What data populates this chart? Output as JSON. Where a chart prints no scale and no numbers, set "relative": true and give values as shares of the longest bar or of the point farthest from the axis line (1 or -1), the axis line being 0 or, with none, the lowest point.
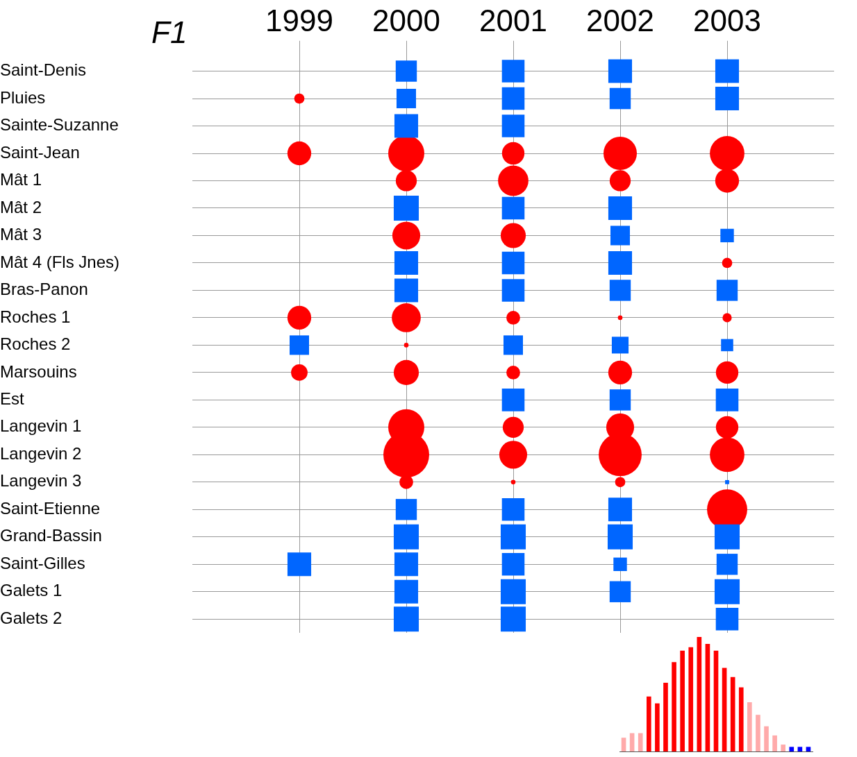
{
  "chart_data": [
    {
      "type": "bubble",
      "orientation": "horizontal",
      "title": "F1",
      "categories": [
        "Saint-Denis",
        "Pluies",
        "Sainte-Suzanne",
        "Saint-Jean",
        "Mât 1",
        "Mât 2",
        "Mât 3",
        "Mât 4 (Fls Jnes)",
        "Bras-Panon",
        "Roches 1",
        "Roches 2",
        "Marsouins",
        "Est",
        "Langevin 1",
        "Langevin 2",
        "Langevin 3",
        "Saint-Etienne",
        "Grand-Bassin",
        "Saint-Gilles",
        "Galets 1",
        "Galets 2"
      ],
      "xlim": [
        1998,
        2004
      ],
      "xticks": [
        1999,
        2000,
        2001,
        2002,
        2003
      ],
      "grid": true,
      "series": [
        {
          "color": "#0066ff",
          "marker": "square",
          "values": [
            null,
            null,
            null,
            null,
            null,
            null,
            null,
            null,
            null,
            null,
            1999,
            null,
            null,
            null,
            null,
            null,
            null,
            null,
            1999,
            null,
            null
          ],
          "sizes": [
            null,
            null,
            null,
            null,
            null,
            null,
            null,
            null,
            null,
            null,
            0.23,
            null,
            null,
            null,
            null,
            null,
            null,
            null,
            0.34,
            null,
            null
          ]
        },
        {
          "color": "#0066ff",
          "marker": "square",
          "values": [
            2000,
            2000,
            2000,
            null,
            null,
            2000,
            null,
            2000,
            2000,
            null,
            null,
            null,
            null,
            null,
            null,
            null,
            2000,
            2000,
            2000,
            2000,
            2000
          ],
          "sizes": [
            0.27,
            0.23,
            0.34,
            null,
            null,
            0.38,
            null,
            0.34,
            0.34,
            null,
            null,
            null,
            null,
            null,
            null,
            null,
            0.27,
            0.38,
            0.34,
            0.34,
            0.38
          ]
        },
        {
          "color": "#0066ff",
          "marker": "square",
          "values": [
            2001,
            2001,
            2001,
            null,
            null,
            2001,
            null,
            2001,
            2001,
            null,
            2001,
            null,
            2001,
            null,
            null,
            null,
            2001,
            2001,
            2001,
            2001,
            2001
          ],
          "sizes": [
            0.31,
            0.31,
            0.31,
            null,
            null,
            0.31,
            null,
            0.31,
            0.31,
            null,
            0.23,
            null,
            0.31,
            null,
            null,
            null,
            0.31,
            0.38,
            0.31,
            0.38,
            0.38
          ]
        },
        {
          "color": "#0066ff",
          "marker": "square",
          "values": [
            2002,
            2002,
            null,
            null,
            null,
            2002,
            2002,
            2002,
            2002,
            null,
            2002,
            null,
            2002,
            null,
            null,
            null,
            2002,
            2002,
            2002,
            2002,
            null
          ],
          "sizes": [
            0.34,
            0.27,
            null,
            null,
            null,
            0.34,
            0.23,
            0.34,
            0.27,
            null,
            0.17,
            null,
            0.27,
            null,
            null,
            null,
            0.34,
            0.38,
            0.11,
            0.27,
            null
          ]
        },
        {
          "color": "#0066ff",
          "marker": "square",
          "values": [
            2003,
            2003,
            null,
            null,
            null,
            null,
            2003,
            null,
            2003,
            null,
            2003,
            null,
            2003,
            null,
            null,
            2003,
            null,
            2003,
            2003,
            2003,
            2003
          ],
          "sizes": [
            0.34,
            0.34,
            null,
            null,
            null,
            null,
            0.11,
            null,
            0.27,
            null,
            0.09,
            null,
            0.31,
            null,
            null,
            0.01,
            null,
            0.38,
            0.27,
            0.38,
            0.31
          ]
        },
        {
          "color": "#ff0000",
          "marker": "circle",
          "values": [
            null,
            1999,
            null,
            1999,
            null,
            null,
            null,
            null,
            null,
            1999,
            null,
            1999,
            null,
            null,
            null,
            null,
            null,
            null,
            null,
            null,
            null
          ],
          "sizes": [
            null,
            0.05,
            null,
            0.27,
            null,
            null,
            null,
            null,
            null,
            0.27,
            null,
            0.13,
            null,
            null,
            null,
            null,
            null,
            null,
            null,
            null,
            null
          ]
        },
        {
          "color": "#ff0000",
          "marker": "circle",
          "values": [
            null,
            null,
            null,
            2000,
            2000,
            null,
            2000,
            null,
            null,
            2000,
            2000,
            2000,
            null,
            2000,
            2000,
            2000,
            null,
            null,
            null,
            null,
            null
          ],
          "sizes": [
            null,
            null,
            null,
            0.62,
            0.21,
            null,
            0.37,
            null,
            null,
            0.4,
            0.01,
            0.3,
            null,
            0.62,
            1,
            0.09,
            null,
            null,
            null,
            null,
            null
          ]
        },
        {
          "color": "#ff0000",
          "marker": "circle",
          "values": [
            null,
            null,
            null,
            2001,
            2001,
            null,
            2001,
            null,
            null,
            2001,
            null,
            2001,
            null,
            2001,
            2001,
            2001,
            null,
            null,
            null,
            null,
            null
          ],
          "sizes": [
            null,
            null,
            null,
            0.24,
            0.44,
            null,
            0.3,
            null,
            null,
            0.09,
            null,
            0.09,
            null,
            0.21,
            0.37,
            0.01,
            null,
            null,
            null,
            null,
            null
          ]
        },
        {
          "color": "#ff0000",
          "marker": "circle",
          "values": [
            null,
            null,
            null,
            2002,
            2002,
            null,
            null,
            null,
            null,
            2002,
            null,
            2002,
            null,
            2002,
            2002,
            2002,
            null,
            null,
            null,
            null,
            null
          ],
          "sizes": [
            null,
            null,
            null,
            0.53,
            0.21,
            null,
            null,
            null,
            null,
            0.01,
            null,
            0.27,
            null,
            0.37,
            0.88,
            0.05,
            null,
            null,
            null,
            null,
            null
          ]
        },
        {
          "color": "#ff0000",
          "marker": "circle",
          "values": [
            null,
            null,
            null,
            2003,
            2003,
            null,
            null,
            2003,
            null,
            2003,
            null,
            2003,
            null,
            2003,
            2003,
            null,
            2003,
            null,
            null,
            null,
            null
          ],
          "sizes": [
            null,
            null,
            null,
            0.57,
            0.27,
            null,
            null,
            0.05,
            null,
            0.04,
            null,
            0.24,
            null,
            0.24,
            0.57,
            null,
            0.77,
            null,
            null,
            null,
            null
          ]
        }
      ]
    },
    {
      "type": "bar",
      "relative": true,
      "categories": [
        null,
        null,
        null,
        null,
        null,
        null,
        null,
        null,
        null,
        null,
        null,
        null,
        null,
        null,
        null,
        null,
        null,
        null,
        null,
        null,
        null,
        null,
        null
      ],
      "values": [
        0.12,
        0.16,
        0.16,
        0.48,
        0.42,
        0.6,
        0.78,
        0.88,
        0.91,
        1,
        0.94,
        0.88,
        0.73,
        0.65,
        0.56,
        0.43,
        0.32,
        0.22,
        0.14,
        0.06,
        0.04,
        0.04,
        0.04
      ],
      "colors": [
        "#ffaaaa",
        "#ffaaaa",
        "#ffaaaa",
        "#ff0000",
        "#ff0000",
        "#ff0000",
        "#ff0000",
        "#ff0000",
        "#ff0000",
        "#ff0000",
        "#ff0000",
        "#ff0000",
        "#ff0000",
        "#ff0000",
        "#ff0000",
        "#ffaaaa",
        "#ffaaaa",
        "#ffaaaa",
        "#ffaaaa",
        "#ffaaaa",
        "#0000ff",
        "#0000ff",
        "#0000ff"
      ]
    }
  ]
}
